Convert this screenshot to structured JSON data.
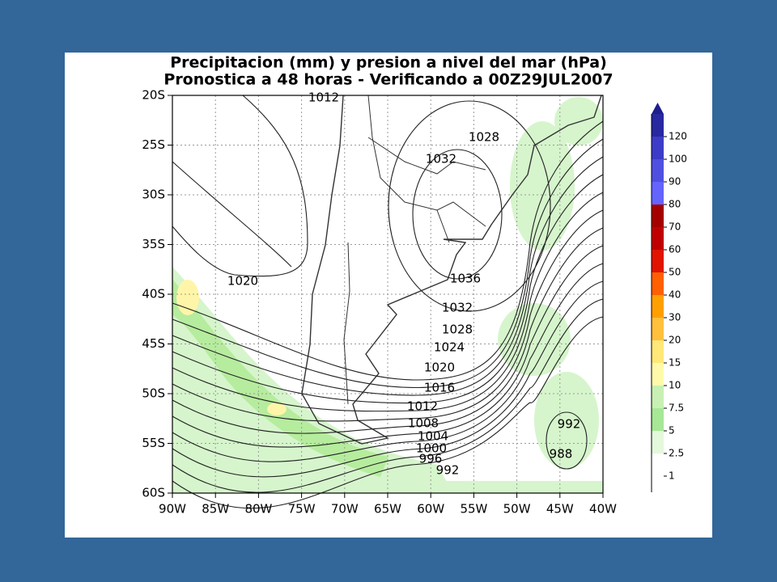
{
  "title": [
    "Precipitacion (mm) y presion a nivel del mar (hPa)",
    "Pronostica a 48 horas - Verificando a 00Z29JUL2007"
  ],
  "latitude_labels": [
    "20S",
    "25S",
    "30S",
    "35S",
    "40S",
    "45S",
    "50S",
    "55S",
    "60S"
  ],
  "longitude_labels": [
    "90W",
    "85W",
    "80W",
    "75W",
    "70W",
    "65W",
    "60W",
    "55W",
    "50W",
    "45W",
    "40W"
  ],
  "contour_labels": [
    "1012",
    "1028",
    "1032",
    "1020",
    "1036",
    "1032",
    "1028",
    "1024",
    "1020",
    "1016",
    "1012",
    "1008",
    "1004",
    "1000",
    "996",
    "992",
    "992",
    "988"
  ],
  "colorbar_labels": [
    "120",
    "100",
    "90",
    "80",
    "70",
    "60",
    "50",
    "40",
    "30",
    "20",
    "15",
    "10",
    "7.5",
    "5",
    "2.5",
    "1"
  ]
}
